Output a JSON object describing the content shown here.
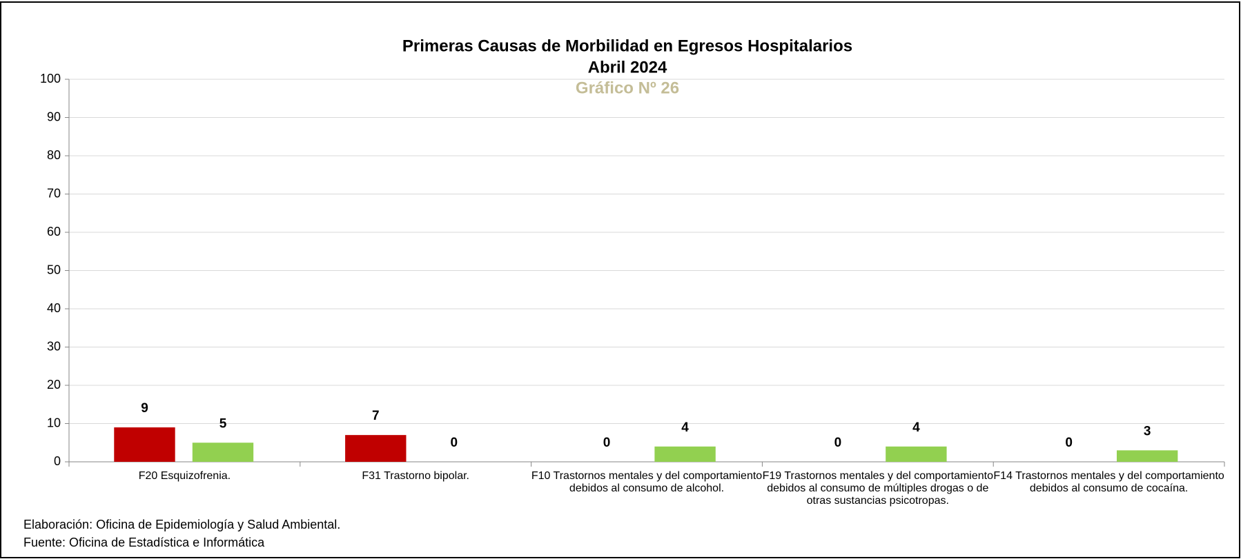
{
  "chart_data": {
    "type": "bar",
    "title": "Primeras Causas de Morbilidad en Egresos Hospitalarios",
    "subtitle": "Abril 2024",
    "chart_number": "Gráfico Nº 26",
    "chart_number_color": "#c4bd97",
    "categories": [
      "F20 Esquizofrenia.",
      "F31 Trastorno bipolar.",
      "F10 Trastornos mentales y del comportamiento debidos al consumo de alcohol.",
      "F19 Trastornos mentales y del comportamiento debidos al consumo de múltiples drogas o de otras sustancias psicotropas.",
      "F14 Trastornos mentales y del comportamiento debidos al consumo de cocaína."
    ],
    "series": [
      {
        "color": "#c00000",
        "values": [
          9,
          7,
          0,
          0,
          0
        ]
      },
      {
        "color": "#92d050",
        "values": [
          5,
          0,
          4,
          4,
          3
        ]
      }
    ],
    "ylim": [
      0,
      100
    ],
    "yticks": [
      0,
      10,
      20,
      30,
      40,
      50,
      60,
      70,
      80,
      90,
      100
    ],
    "grid": true,
    "notes": [
      "Elaboración: Oficina de Epidemiología y Salud Ambiental.",
      "Fuente:  Oficina de Estadística e Informática"
    ]
  }
}
